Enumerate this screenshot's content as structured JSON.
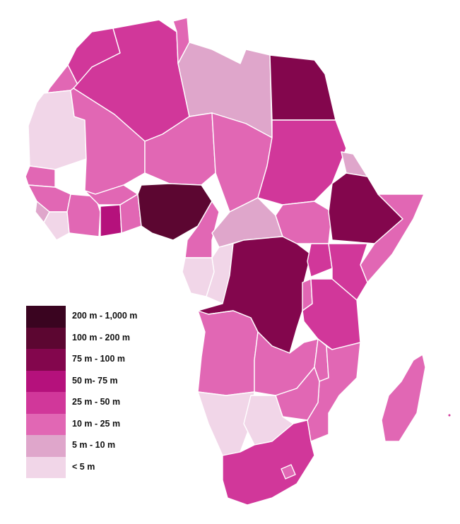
{
  "colors": {
    "c200_1000": "#3a0420",
    "c100_200": "#5c0631",
    "c75_100": "#83064d",
    "c50_75": "#b5117c",
    "c25_50": "#d1379a",
    "c10_25": "#e167b4",
    "c5_10": "#dfa6cb",
    "c0_5": "#f1d6e8",
    "border": "#ffffff"
  },
  "legend": {
    "items": [
      {
        "label": "200 m - 1,000 m",
        "color": "#3a0420"
      },
      {
        "label": "100 m - 200 m",
        "color": "#5c0631"
      },
      {
        "label": "75 m - 100 m",
        "color": "#83064d"
      },
      {
        "label": "50 m- 75 m",
        "color": "#b5117c"
      },
      {
        "label": "25 m - 50 m",
        "color": "#d1379a"
      },
      {
        "label": "10 m - 25 m",
        "color": "#e167b4"
      },
      {
        "label": "5 m - 10 m",
        "color": "#dfa6cb"
      },
      {
        "label": "< 5 m",
        "color": "#f1d6e8"
      }
    ]
  }
}
